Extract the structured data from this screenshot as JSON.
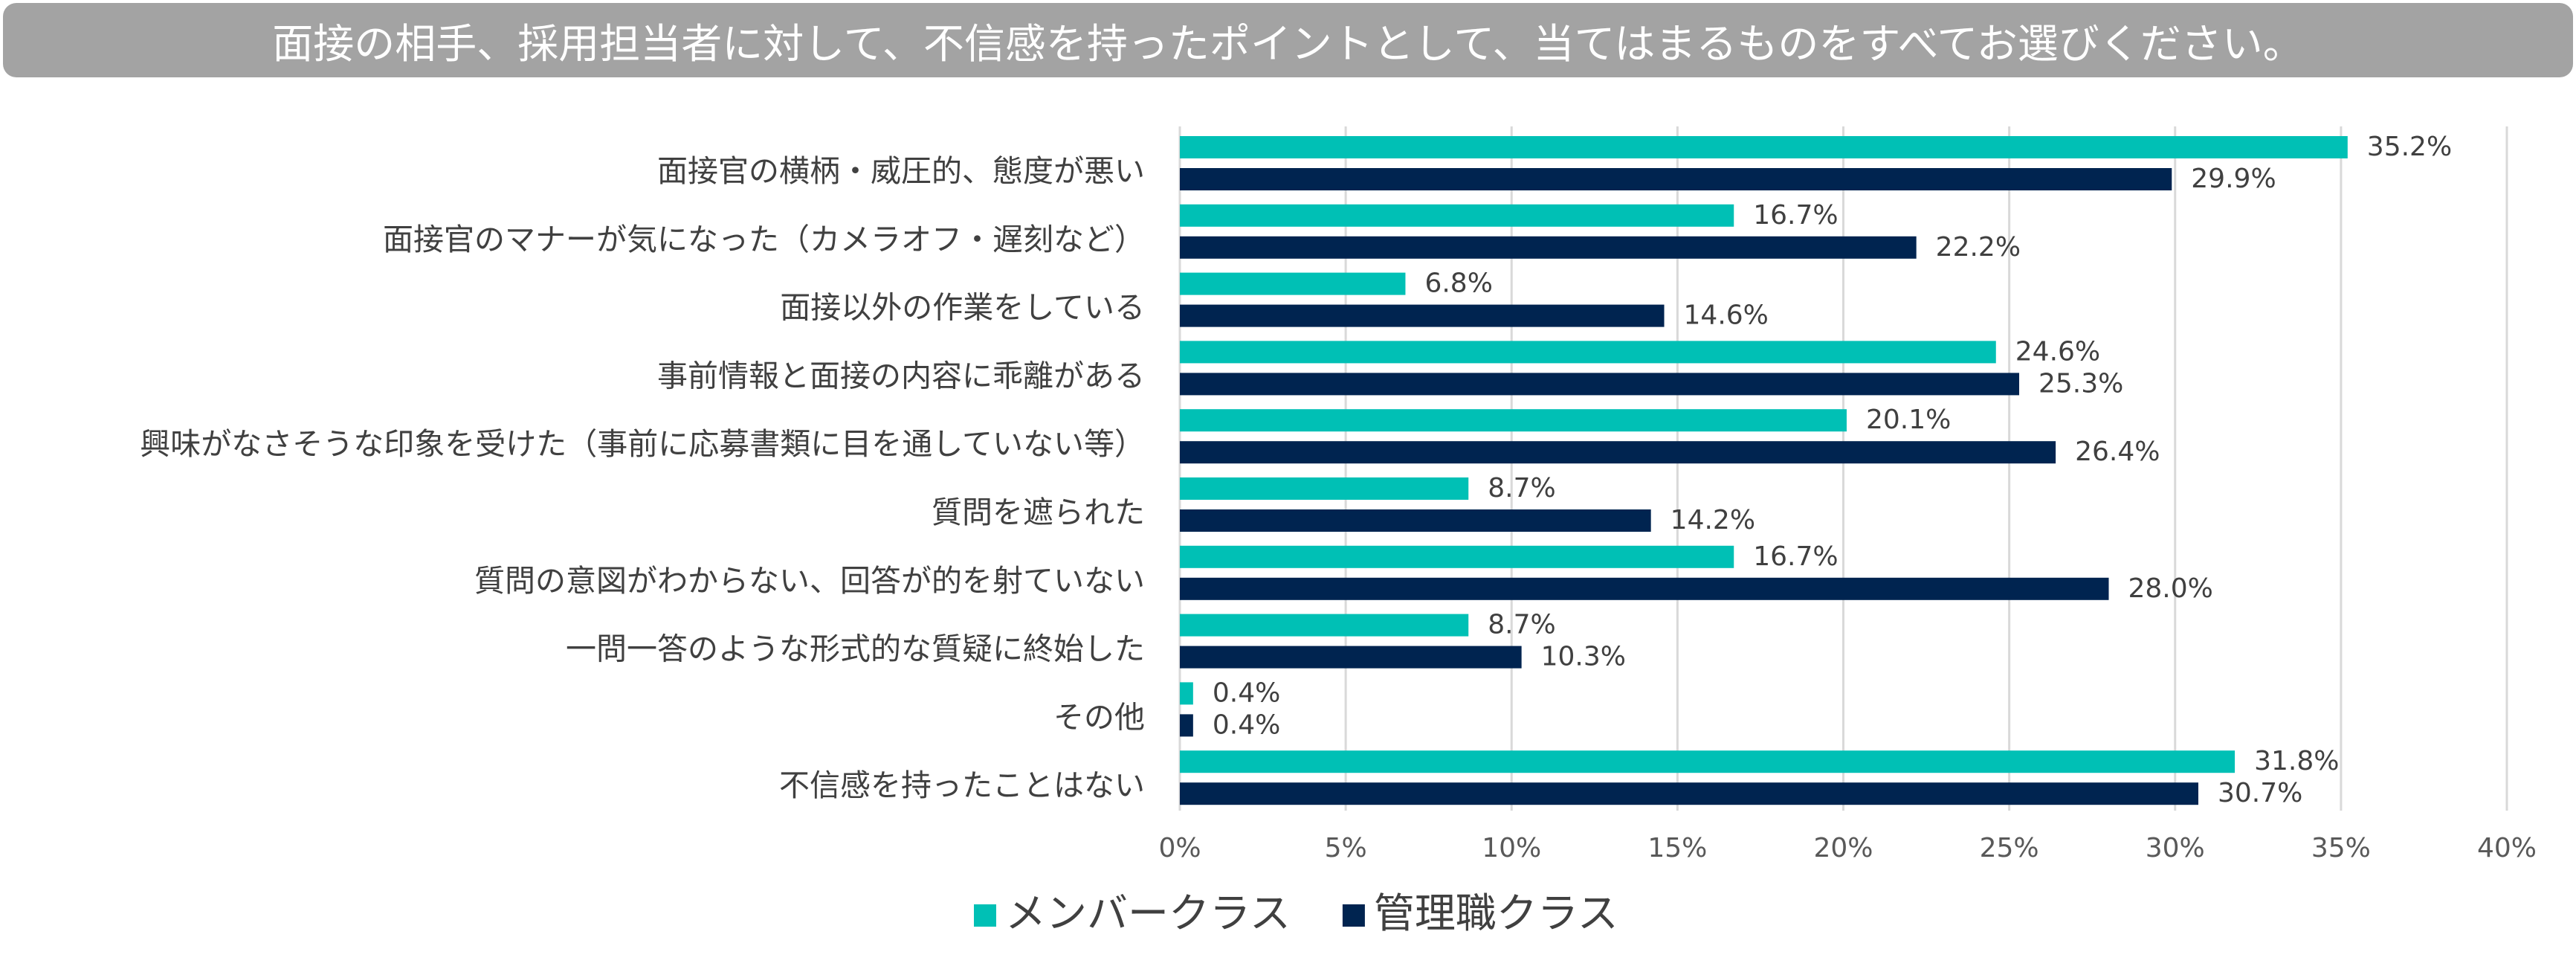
{
  "title": "面接の相手、採用担当者に対して、不信感を持ったポイントとして、当てはまるものをすべてお選びください。",
  "chart_data": {
    "type": "bar",
    "orientation": "horizontal",
    "title": "面接の相手、採用担当者に対して、不信感を持ったポイントとして、当てはまるものをすべてお選びください。",
    "categories": [
      "面接官の横柄・威圧的、態度が悪い",
      "面接官のマナーが気になった（カメラオフ・遅刻など）",
      "面接以外の作業をしている",
      "事前情報と面接の内容に乖離がある",
      "興味がなさそうな印象を受けた（事前に応募書類に目を通していない等）",
      "質問を遮られた",
      "質問の意図がわからない、回答が的を射ていない",
      "一問一答のような形式的な質疑に終始した",
      "その他",
      "不信感を持ったことはない"
    ],
    "series": [
      {
        "name": "メンバークラス",
        "color": "#00c0b5",
        "values": [
          35.2,
          16.7,
          6.8,
          24.6,
          20.1,
          8.7,
          16.7,
          8.7,
          0.4,
          31.8
        ],
        "labels": [
          "35.2%",
          "16.7%",
          "6.8%",
          "24.6%",
          "20.1%",
          "8.7%",
          "16.7%",
          "8.7%",
          "0.4%",
          "31.8%"
        ]
      },
      {
        "name": "管理職クラス",
        "color": "#002450",
        "values": [
          29.9,
          22.2,
          14.6,
          25.3,
          26.4,
          14.2,
          28.0,
          10.3,
          0.4,
          30.7
        ],
        "labels": [
          "29.9%",
          "22.2%",
          "14.6%",
          "25.3%",
          "26.4%",
          "14.2%",
          "28.0%",
          "10.3%",
          "0.4%",
          "30.7%"
        ]
      }
    ],
    "xlim": [
      0,
      40
    ],
    "xticks": [
      0,
      5,
      10,
      15,
      20,
      25,
      30,
      35,
      40
    ],
    "xtick_labels": [
      "0%",
      "5%",
      "10%",
      "15%",
      "20%",
      "25%",
      "30%",
      "35%",
      "40%"
    ],
    "grid": true,
    "legend_position": "bottom-center"
  }
}
